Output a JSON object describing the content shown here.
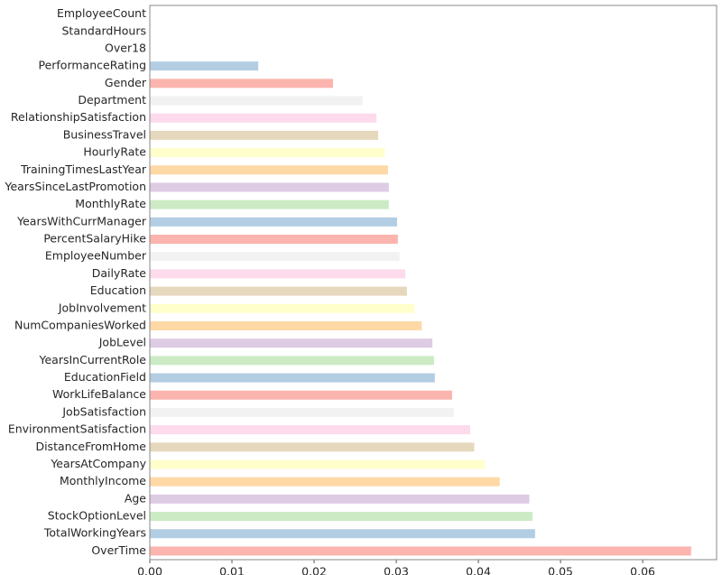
{
  "chart_data": {
    "type": "barh",
    "categories": [
      "EmployeeCount",
      "StandardHours",
      "Over18",
      "PerformanceRating",
      "Gender",
      "Department",
      "RelationshipSatisfaction",
      "BusinessTravel",
      "HourlyRate",
      "TrainingTimesLastYear",
      "YearsSinceLastPromotion",
      "MonthlyRate",
      "YearsWithCurrManager",
      "PercentSalaryHike",
      "EmployeeNumber",
      "DailyRate",
      "Education",
      "JobInvolvement",
      "NumCompaniesWorked",
      "JobLevel",
      "YearsInCurrentRole",
      "EducationField",
      "WorkLifeBalance",
      "JobSatisfaction",
      "EnvironmentSatisfaction",
      "DistanceFromHome",
      "YearsAtCompany",
      "MonthlyIncome",
      "Age",
      "StockOptionLevel",
      "TotalWorkingYears",
      "OverTime"
    ],
    "values": [
      0,
      0,
      0,
      0.0132,
      0.0223,
      0.0259,
      0.0276,
      0.0278,
      0.0286,
      0.029,
      0.0291,
      0.0291,
      0.0301,
      0.0302,
      0.0304,
      0.0311,
      0.0313,
      0.0322,
      0.0331,
      0.0344,
      0.0346,
      0.0347,
      0.0368,
      0.037,
      0.039,
      0.0395,
      0.0408,
      0.0426,
      0.0462,
      0.0466,
      0.0469,
      0.0659
    ],
    "colors": [
      "#fbb4ae",
      "#b3cde3",
      "#ccebc5",
      "#decbe4",
      "#fed9a6",
      "#ffffcc",
      "#e5d8bd",
      "#fddaec",
      "#f2f2f2"
    ],
    "xlim": [
      0,
      0.069
    ],
    "xticks": [
      {
        "value": 0,
        "label": "0.00"
      },
      0.01,
      0.02,
      0.03,
      0.04,
      0.05,
      0.06
    ],
    "grid": false
  }
}
